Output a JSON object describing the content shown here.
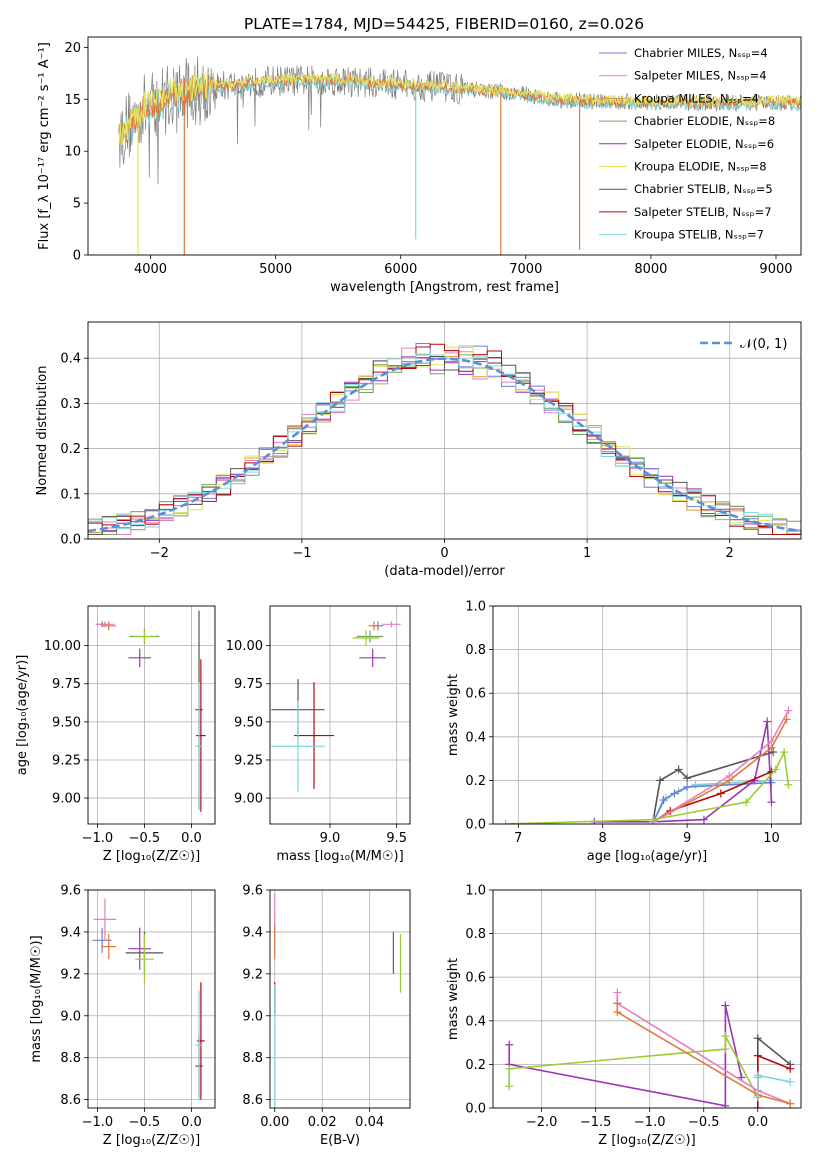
{
  "title": "PLATE=1784, MJD=54425, FIBERID=0160, z=0.026",
  "colors": [
    "#6a7fd8",
    "#e67fbf",
    "#d3a03b",
    "#6aa65b",
    "#9b34b5",
    "#e3e35f",
    "#555555",
    "#b7070b",
    "#7dd6df",
    "#e07a3a",
    "#9acd32"
  ],
  "chart_data": [
    {
      "type": "line",
      "name": "spectrum",
      "xlabel": "wavelength [Angstrom, rest frame]",
      "ylabel": "Flux [f_λ 10⁻¹⁷ erg cm⁻² s⁻¹ A⁻¹]",
      "xlim": [
        3500,
        9200
      ],
      "ylim": [
        0,
        21
      ],
      "xticks": [
        4000,
        5000,
        6000,
        7000,
        8000,
        9000
      ],
      "yticks": [
        0,
        5,
        10,
        15,
        20
      ],
      "grid": false,
      "legend_position": "top-right",
      "series": [
        {
          "name": "Chabrier MILES, N_SSP=4",
          "color": "#6a7fd8"
        },
        {
          "name": "Salpeter MILES, N_SSP=4",
          "color": "#e67fbf"
        },
        {
          "name": "Kroupa MILES, N_SSP=4",
          "color": "#d3a03b"
        },
        {
          "name": "Chabrier ELODIE, N_SSP=8",
          "color": "#6aa65b"
        },
        {
          "name": "Salpeter ELODIE, N_SSP=6",
          "color": "#9b34b5"
        },
        {
          "name": "Kroupa ELODIE, N_SSP=8",
          "color": "#e3e35f"
        },
        {
          "name": "Chabrier STELIB, N_SSP=5",
          "color": "#555555"
        },
        {
          "name": "Salpeter STELIB, N_SSP=7",
          "color": "#b7070b"
        },
        {
          "name": "Kroupa STELIB, N_SSP=7",
          "color": "#7dd6df"
        }
      ],
      "continuum": {
        "x": [
          3750,
          3900,
          4000,
          4200,
          4500,
          5000,
          5500,
          6000,
          6300,
          6600,
          7000,
          7200,
          7500,
          8000,
          8500,
          9000,
          9200
        ],
        "y": [
          11.5,
          13.5,
          14.5,
          15.5,
          16.2,
          16.8,
          16.8,
          16.4,
          16.2,
          15.9,
          15.5,
          15.0,
          14.8,
          14.7,
          14.6,
          14.7,
          14.6
        ]
      },
      "dips": [
        {
          "x": 3900,
          "y": 0
        },
        {
          "x": 4270,
          "y": 0
        },
        {
          "x": 6120,
          "y": 1.5
        },
        {
          "x": 6800,
          "y": 0
        },
        {
          "x": 7430,
          "y": 0.5
        }
      ]
    },
    {
      "type": "area",
      "name": "residual histogram",
      "xlabel": "(data-model)/error",
      "ylabel": "Normed distribution",
      "xlim": [
        -2.5,
        2.5
      ],
      "ylim": [
        0,
        0.48
      ],
      "xticks": [
        -2,
        -1,
        0,
        1,
        2
      ],
      "yticks": [
        0.0,
        0.1,
        0.2,
        0.3,
        0.4
      ],
      "grid": true,
      "legend_position": "top-right",
      "legend": "𝒩(0, 1)",
      "bins": 50
    },
    {
      "type": "scatter",
      "name": "age vs Z",
      "xlabel": "Z [log₁₀(Z/Z☉)]",
      "ylabel": "age  [log₁₀(age/yr)]",
      "xlim": [
        -1.1,
        0.25
      ],
      "ylim": [
        8.83,
        10.26
      ],
      "xticks": [
        -1.0,
        -0.5,
        0.0
      ],
      "yticks": [
        9.0,
        9.25,
        9.5,
        9.75,
        10.0
      ],
      "grid": true,
      "points": [
        {
          "x": -0.95,
          "y": 10.14,
          "xe": 0.06,
          "ye": 0.02,
          "c": "#6a7fd8"
        },
        {
          "x": -0.92,
          "y": 10.14,
          "xe": 0.1,
          "ye": 0.02,
          "c": "#e67fbf"
        },
        {
          "x": -0.88,
          "y": 10.13,
          "xe": 0.08,
          "ye": 0.03,
          "c": "#e07a3a"
        },
        {
          "x": -0.5,
          "y": 10.06,
          "xe": 0.16,
          "ye": 0.05,
          "c": "#6aa65b"
        },
        {
          "x": -0.5,
          "y": 10.06,
          "xe": 0.12,
          "ye": 0.04,
          "c": "#9acd32"
        },
        {
          "x": -0.55,
          "y": 9.92,
          "xe": 0.12,
          "ye": 0.06,
          "c": "#9b34b5"
        },
        {
          "x": 0.08,
          "y": 9.58,
          "xe": 0.04,
          "ye": 0.65,
          "c": "#555555"
        },
        {
          "x": 0.1,
          "y": 9.41,
          "xe": 0.05,
          "ye": 0.5,
          "c": "#b7070b"
        },
        {
          "x": 0.08,
          "y": 9.34,
          "xe": 0.04,
          "ye": 0.42,
          "c": "#7dd6df"
        }
      ]
    },
    {
      "type": "scatter",
      "name": "age vs mass",
      "xlabel": "mass [log₁₀(M/M☉)]",
      "ylabel": "",
      "xlim": [
        8.55,
        9.6
      ],
      "ylim": [
        8.83,
        10.26
      ],
      "xticks": [
        9.0,
        9.5
      ],
      "yticks": [
        9.0,
        9.25,
        9.5,
        9.75,
        10.0
      ],
      "grid": true,
      "points": [
        {
          "x": 9.36,
          "y": 10.13,
          "xe": 0.04,
          "ye": 0.03,
          "c": "#6a7fd8"
        },
        {
          "x": 9.46,
          "y": 10.14,
          "xe": 0.07,
          "ye": 0.02,
          "c": "#e67fbf"
        },
        {
          "x": 9.33,
          "y": 10.13,
          "xe": 0.04,
          "ye": 0.03,
          "c": "#e07a3a"
        },
        {
          "x": 9.3,
          "y": 10.06,
          "xe": 0.1,
          "ye": 0.04,
          "c": "#6aa65b"
        },
        {
          "x": 9.27,
          "y": 10.05,
          "xe": 0.1,
          "ye": 0.05,
          "c": "#9acd32"
        },
        {
          "x": 9.32,
          "y": 9.92,
          "xe": 0.1,
          "ye": 0.06,
          "c": "#9b34b5"
        },
        {
          "x": 8.76,
          "y": 9.58,
          "xe": 0.2,
          "ye": 0.2,
          "c": "#555555"
        },
        {
          "x": 8.88,
          "y": 9.41,
          "xe": 0.15,
          "ye": 0.35,
          "c": "#b7070b"
        },
        {
          "x": 8.76,
          "y": 9.34,
          "xe": 0.2,
          "ye": 0.3,
          "c": "#7dd6df"
        }
      ]
    },
    {
      "type": "line",
      "name": "mass weight vs age",
      "xlabel": "age  [log₁₀(age/yr)]",
      "ylabel": "mass weight",
      "xlim": [
        6.7,
        10.35
      ],
      "ylim": [
        0,
        1.0
      ],
      "xticks": [
        7,
        8,
        9,
        10
      ],
      "yticks": [
        0.0,
        0.2,
        0.4,
        0.6,
        0.8,
        1.0
      ],
      "grid": true,
      "series": [
        {
          "c": "#555555",
          "x": [
            8.6,
            8.68,
            8.9,
            9.0,
            10.02
          ],
          "y": [
            0.02,
            0.2,
            0.25,
            0.21,
            0.33
          ]
        },
        {
          "c": "#7dd6df",
          "x": [
            8.6,
            8.75,
            8.9,
            9.1,
            10.0
          ],
          "y": [
            0.01,
            0.12,
            0.15,
            0.18,
            0.2
          ]
        },
        {
          "c": "#6a7fd8",
          "x": [
            8.6,
            8.72,
            8.85,
            9.0,
            10.0
          ],
          "y": [
            0.01,
            0.11,
            0.14,
            0.17,
            0.19
          ]
        },
        {
          "c": "#9b34b5",
          "x": [
            7.9,
            8.6,
            9.2,
            9.8,
            9.95,
            10.0
          ],
          "y": [
            0.01,
            0.01,
            0.02,
            0.2,
            0.47,
            0.1
          ]
        },
        {
          "c": "#b7070b",
          "x": [
            8.6,
            8.8,
            9.4,
            10.0
          ],
          "y": [
            0.01,
            0.06,
            0.14,
            0.24
          ]
        },
        {
          "c": "#e07a3a",
          "x": [
            8.6,
            9.5,
            10.0,
            10.18
          ],
          "y": [
            0.01,
            0.2,
            0.35,
            0.48
          ]
        },
        {
          "c": "#e67fbf",
          "x": [
            8.6,
            9.5,
            10.0,
            10.2
          ],
          "y": [
            0.01,
            0.22,
            0.38,
            0.52
          ]
        },
        {
          "c": "#9acd32",
          "x": [
            6.85,
            8.6,
            9.7,
            10.05,
            10.15,
            10.2
          ],
          "y": [
            0.0,
            0.02,
            0.1,
            0.25,
            0.33,
            0.18
          ]
        }
      ]
    },
    {
      "type": "scatter",
      "name": "mass vs Z",
      "xlabel": "Z [log₁₀(Z/Z☉)]",
      "ylabel": "mass [log₁₀(M/M☉)]",
      "xlim": [
        -1.1,
        0.25
      ],
      "ylim": [
        8.56,
        9.6
      ],
      "xticks": [
        -1.0,
        -0.5,
        0.0
      ],
      "yticks": [
        8.6,
        8.8,
        9.0,
        9.2,
        9.4,
        9.6
      ],
      "grid": true,
      "points": [
        {
          "x": -0.95,
          "y": 9.36,
          "xe": 0.1,
          "ye": 0.06,
          "c": "#6a7fd8"
        },
        {
          "x": -0.92,
          "y": 9.46,
          "xe": 0.12,
          "ye": 0.1,
          "c": "#e67fbf"
        },
        {
          "x": -0.88,
          "y": 9.33,
          "xe": 0.08,
          "ye": 0.06,
          "c": "#e07a3a"
        },
        {
          "x": -0.5,
          "y": 9.3,
          "xe": 0.2,
          "ye": 0.1,
          "c": "#555555"
        },
        {
          "x": -0.55,
          "y": 9.32,
          "xe": 0.12,
          "ye": 0.1,
          "c": "#9b34b5"
        },
        {
          "x": -0.5,
          "y": 9.27,
          "xe": 0.1,
          "ye": 0.12,
          "c": "#9acd32"
        },
        {
          "x": 0.08,
          "y": 8.76,
          "xe": 0.04,
          "ye": 0.15,
          "c": "#555555"
        },
        {
          "x": 0.1,
          "y": 8.88,
          "xe": 0.04,
          "ye": 0.28,
          "c": "#b7070b"
        },
        {
          "x": 0.08,
          "y": 8.86,
          "xe": 0.04,
          "ye": 0.26,
          "c": "#7dd6df"
        }
      ]
    },
    {
      "type": "scatter",
      "name": "mass vs E(B-V)",
      "xlabel": "E(B-V)",
      "ylabel": "",
      "xlim": [
        -0.002,
        0.057
      ],
      "ylim": [
        8.56,
        9.6
      ],
      "xticks": [
        0.0,
        0.02,
        0.04
      ],
      "yticks": [
        8.6,
        8.8,
        9.0,
        9.2,
        9.4,
        9.6
      ],
      "grid": true,
      "points": [
        {
          "x": 0.0,
          "y": 9.48,
          "xe": 0.0002,
          "ye": 0.1,
          "c": "#e67fbf"
        },
        {
          "x": 0.0,
          "y": 9.35,
          "xe": 0.0002,
          "ye": 0.08,
          "c": "#e07a3a"
        },
        {
          "x": 0.0,
          "y": 9.08,
          "xe": 0.0002,
          "ye": 0.08,
          "c": "#b7070b"
        },
        {
          "x": 0.0,
          "y": 8.85,
          "xe": 0.0002,
          "ye": 0.3,
          "c": "#7dd6df"
        },
        {
          "x": 0.05,
          "y": 9.3,
          "xe": 0.0002,
          "ye": 0.1,
          "c": "#9b34b5"
        },
        {
          "x": 0.053,
          "y": 9.25,
          "xe": 0.0002,
          "ye": 0.14,
          "c": "#9acd32"
        }
      ]
    },
    {
      "type": "line",
      "name": "mass weight vs Z",
      "xlabel": "Z [log₁₀(Z/Z☉)]",
      "ylabel": "mass weight",
      "xlim": [
        -2.45,
        0.4
      ],
      "ylim": [
        0,
        1.0
      ],
      "xticks": [
        -2.0,
        -1.5,
        -1.0,
        -0.5,
        0.0
      ],
      "yticks": [
        0.0,
        0.2,
        0.4,
        0.6,
        0.8,
        1.0
      ],
      "grid": true,
      "series": [
        {
          "c": "#9b34b5",
          "x": [
            -2.3,
            -2.3,
            -0.3,
            -0.3,
            -0.15
          ],
          "y": [
            0.29,
            0.2,
            0.01,
            0.47,
            0.14
          ]
        },
        {
          "c": "#9acd32",
          "x": [
            -2.3,
            -2.3,
            -0.3,
            -0.3,
            0.0,
            0.0
          ],
          "y": [
            0.1,
            0.18,
            0.27,
            0.33,
            0.05,
            0.14
          ]
        },
        {
          "c": "#e67fbf",
          "x": [
            -1.3,
            -1.3,
            0.0,
            0.3
          ],
          "y": [
            0.53,
            0.48,
            0.08,
            0.02
          ]
        },
        {
          "c": "#e07a3a",
          "x": [
            -1.3,
            -1.3,
            0.0,
            0.3
          ],
          "y": [
            0.48,
            0.44,
            0.06,
            0.02
          ]
        },
        {
          "c": "#555555",
          "x": [
            0.0,
            0.0,
            0.3
          ],
          "y": [
            0.05,
            0.32,
            0.2
          ]
        },
        {
          "c": "#b7070b",
          "x": [
            0.0,
            0.0,
            0.3
          ],
          "y": [
            0.0,
            0.24,
            0.18
          ]
        },
        {
          "c": "#7dd6df",
          "x": [
            0.0,
            0.0,
            0.3
          ],
          "y": [
            0.05,
            0.15,
            0.12
          ]
        }
      ]
    }
  ]
}
